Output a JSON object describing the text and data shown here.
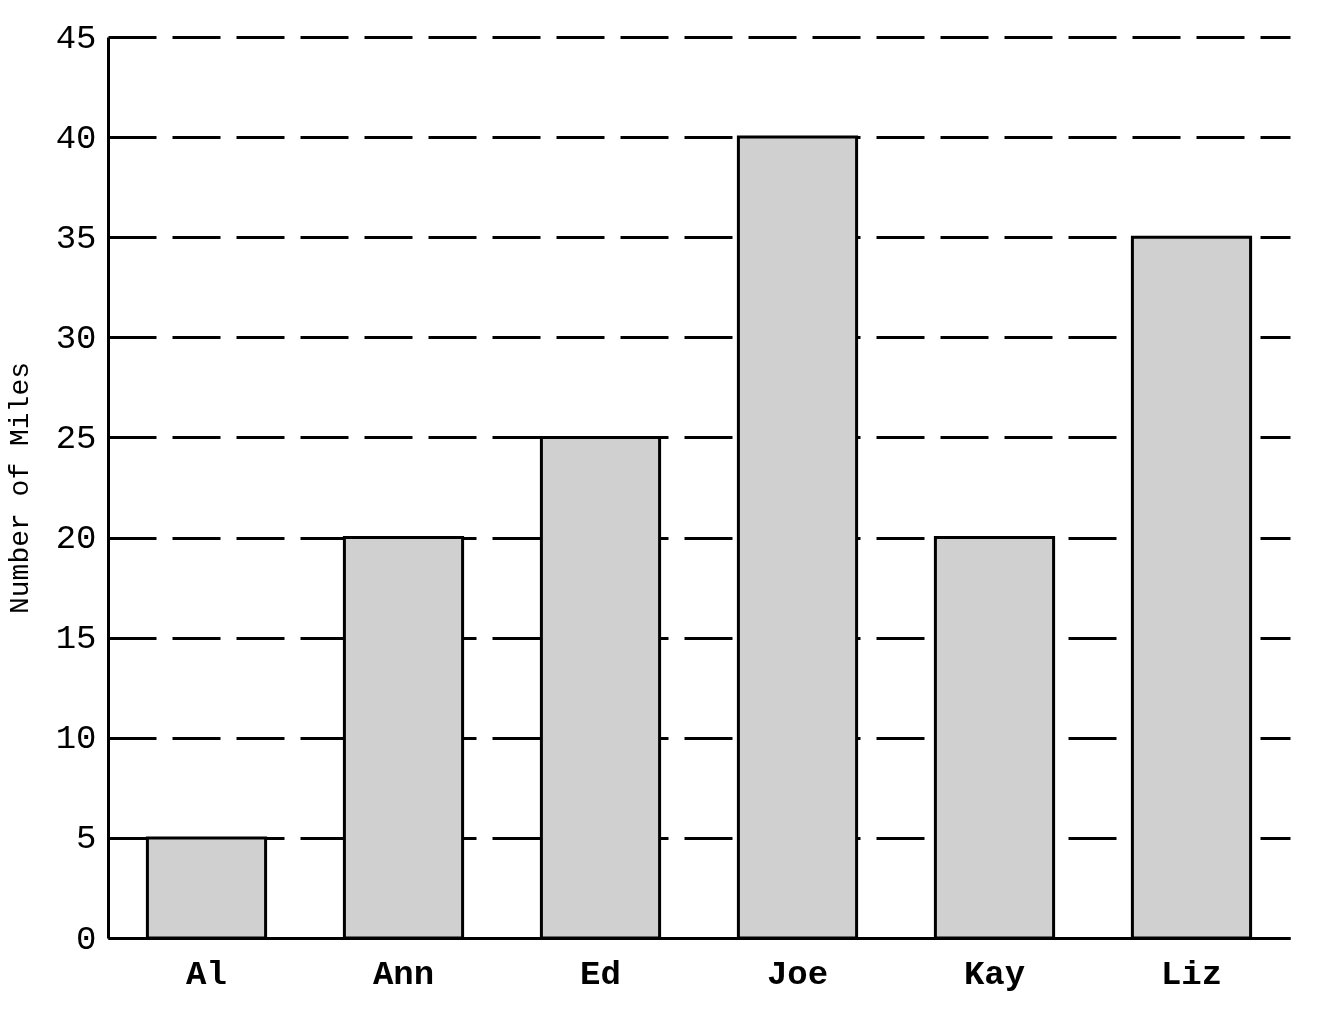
{
  "chart_data": {
    "type": "bar",
    "ylabel": "Number of Miles",
    "categories": [
      "Al",
      "Ann",
      "Ed",
      "Joe",
      "Kay",
      "Liz"
    ],
    "values": [
      5,
      20,
      25,
      40,
      20,
      35
    ],
    "color": "#d0d0d0",
    "ylim": [
      0,
      45
    ],
    "yticks": [
      0,
      5,
      10,
      15,
      20,
      25,
      30,
      35,
      40,
      45
    ],
    "grid": "y"
  }
}
